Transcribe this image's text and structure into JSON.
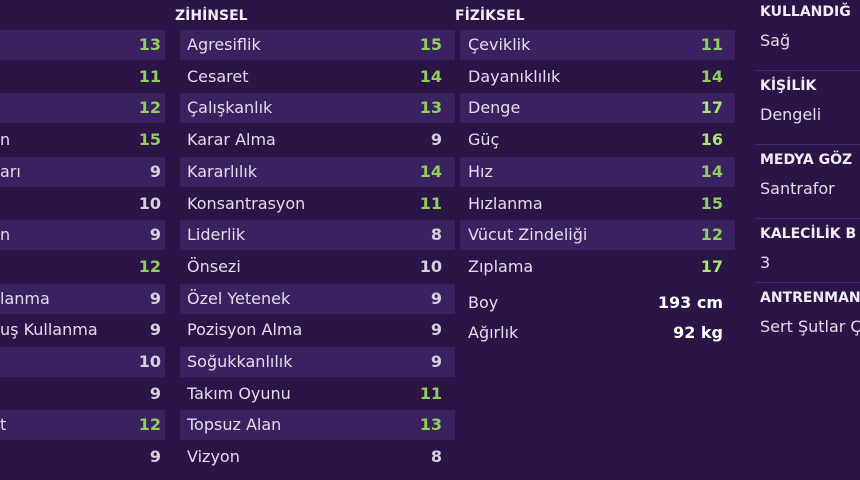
{
  "columns": [
    {
      "rows": [
        {
          "value": 13
        },
        {
          "value": 11
        },
        {
          "value": 12
        },
        {
          "label": "n",
          "value": 15
        },
        {
          "label": "arı",
          "value": 9
        },
        {
          "value": 10
        },
        {
          "label": "n",
          "value": 9
        },
        {
          "value": 12
        },
        {
          "label": "lanma",
          "value": 9
        },
        {
          "label": "uş Kullanma",
          "value": 9
        },
        {
          "value": 10
        },
        {
          "value": 9
        },
        {
          "label": "t",
          "value": 12
        },
        {
          "value": 9
        }
      ]
    },
    {
      "title": "ZİHİNSEL",
      "rows": [
        {
          "label": "Agresiflik",
          "value": 15
        },
        {
          "label": "Cesaret",
          "value": 14
        },
        {
          "label": "Çalışkanlık",
          "value": 13
        },
        {
          "label": "Karar Alma",
          "value": 9
        },
        {
          "label": "Kararlılık",
          "value": 14
        },
        {
          "label": "Konsantrasyon",
          "value": 11
        },
        {
          "label": "Liderlik",
          "value": 8
        },
        {
          "label": "Önsezi",
          "value": 10
        },
        {
          "label": "Özel Yetenek",
          "value": 9
        },
        {
          "label": "Pozisyon Alma",
          "value": 9
        },
        {
          "label": "Soğukkanlılık",
          "value": 9
        },
        {
          "label": "Takım Oyunu",
          "value": 11
        },
        {
          "label": "Topsuz Alan",
          "value": 13
        },
        {
          "label": "Vizyon",
          "value": 8
        }
      ]
    },
    {
      "title": "FİZİKSEL",
      "rows": [
        {
          "label": "Çeviklik",
          "value": 11
        },
        {
          "label": "Dayanıklılık",
          "value": 14
        },
        {
          "label": "Denge",
          "value": 17
        },
        {
          "label": "Güç",
          "value": 16
        },
        {
          "label": "Hız",
          "value": 14
        },
        {
          "label": "Hızlanma",
          "value": 15
        },
        {
          "label": "Vücut Zindeliği",
          "value": 12
        },
        {
          "label": "Zıplama",
          "value": 17
        }
      ],
      "extras": [
        {
          "label": "Boy",
          "value": "193 cm"
        },
        {
          "label": "Ağırlık",
          "value": "92 kg"
        }
      ]
    }
  ],
  "info": [
    {
      "label": "KULLANDIĞ",
      "value": "Sağ"
    },
    {
      "label": "KİŞİLİK",
      "value": "Dengeli"
    },
    {
      "label": "MEDYA GÖZ",
      "value": "Santrafor"
    },
    {
      "label": "KALECİLİK B",
      "value": "3"
    },
    {
      "label": "ANTRENMAN",
      "value": "Sert Şutlar Ç"
    }
  ]
}
